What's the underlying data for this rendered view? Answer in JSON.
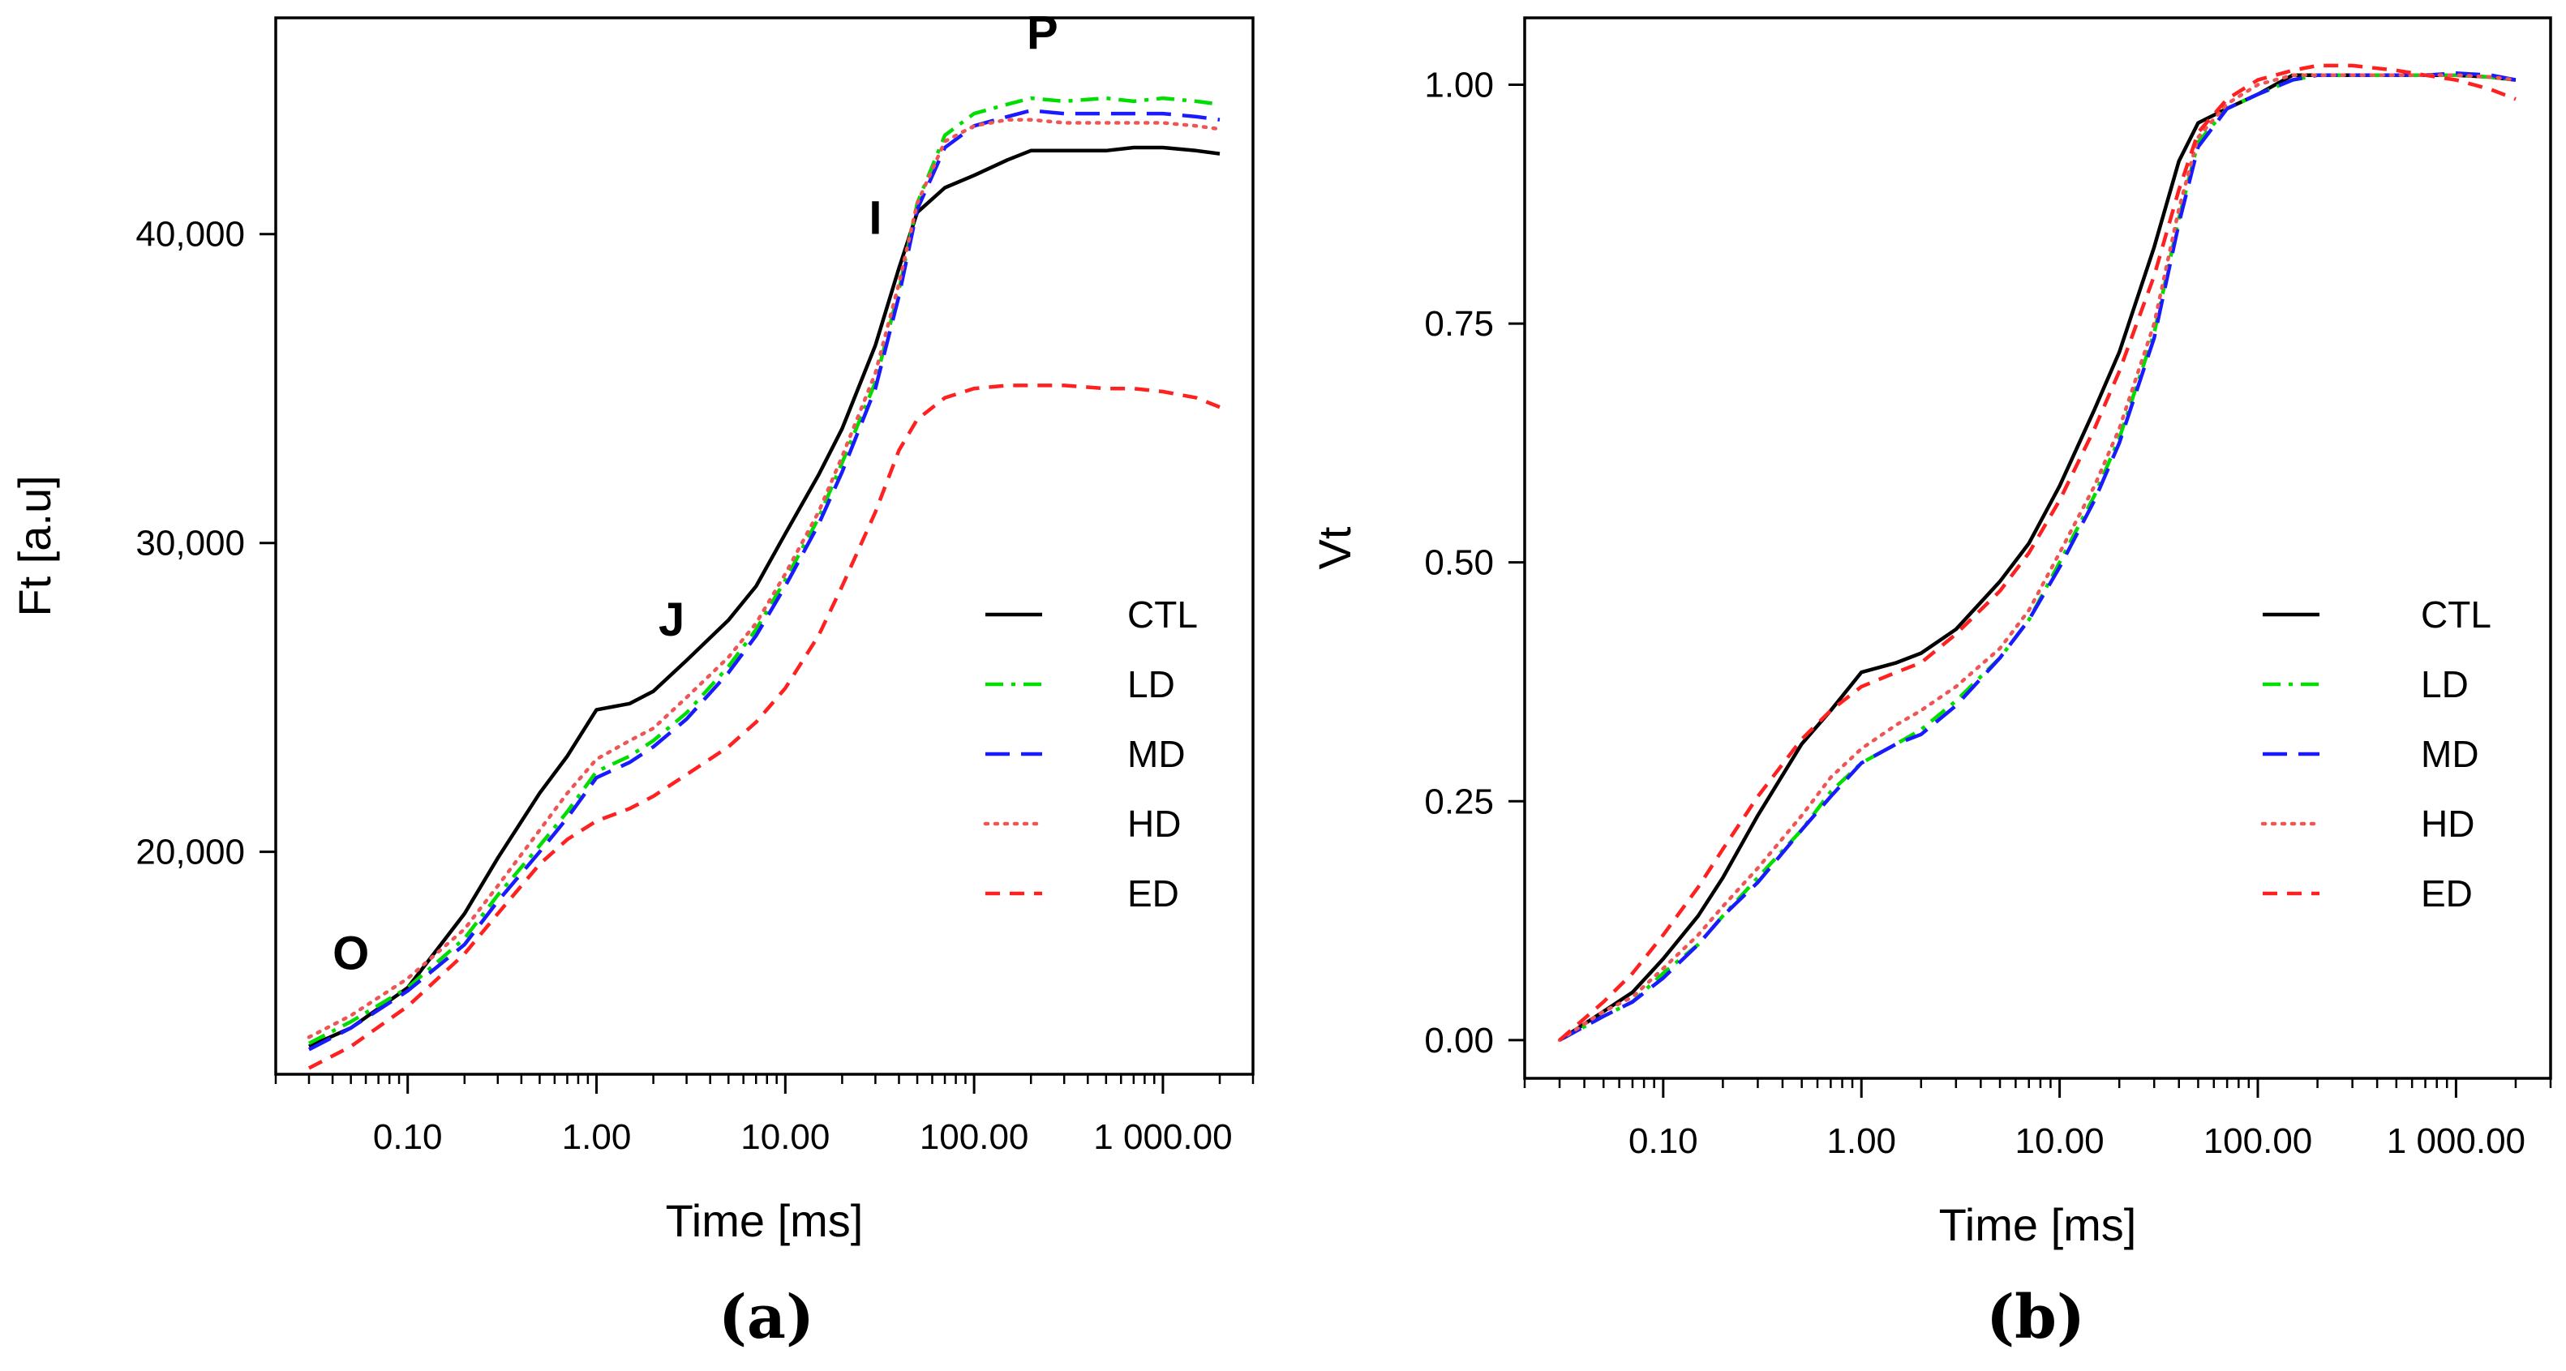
{
  "chart_data": [
    {
      "type": "line",
      "panel_label": "(a)",
      "xlabel": "Time [ms]",
      "ylabel": "Ft [a.u]",
      "xscale": "log",
      "xlim": [
        0.02,
        3000
      ],
      "ylim": [
        12800,
        47000
      ],
      "grid": false,
      "legend_position": "center-right",
      "xticks": [
        0.1,
        1,
        10,
        100,
        1000
      ],
      "xtick_labels": [
        "0.10",
        "1.00",
        "10.00",
        "100.00",
        "1 000.00"
      ],
      "yticks": [
        20000,
        30000,
        40000
      ],
      "ytick_labels": [
        "20,000",
        "30,000",
        "40,000"
      ],
      "annotations": [
        {
          "text": "O",
          "x": 0.05,
          "y": 16200
        },
        {
          "text": "J",
          "x": 2.5,
          "y": 27000
        },
        {
          "text": "I",
          "x": 30,
          "y": 40000
        },
        {
          "text": "P",
          "x": 230,
          "y": 46000
        }
      ],
      "series": [
        {
          "name": "CTL",
          "color": "#000000",
          "style": "solid",
          "x": [
            0.03,
            0.05,
            0.1,
            0.2,
            0.3,
            0.5,
            0.7,
            1,
            1.5,
            2,
            3,
            5,
            7,
            10,
            15,
            20,
            30,
            40,
            50,
            70,
            100,
            150,
            200,
            300,
            500,
            700,
            1000,
            1500,
            2000
          ],
          "y": [
            13700,
            14300,
            15600,
            18000,
            19800,
            21900,
            23100,
            24600,
            24800,
            25200,
            26200,
            27500,
            28600,
            30300,
            32200,
            33700,
            36400,
            38900,
            40700,
            41500,
            41900,
            42400,
            42700,
            42700,
            42700,
            42800,
            42800,
            42700,
            42600
          ]
        },
        {
          "name": "LD",
          "color": "#00dd00",
          "style": "dashdot",
          "x": [
            0.03,
            0.05,
            0.1,
            0.2,
            0.3,
            0.5,
            0.7,
            1,
            1.5,
            2,
            3,
            5,
            7,
            10,
            15,
            20,
            30,
            40,
            50,
            70,
            100,
            150,
            200,
            300,
            500,
            700,
            1000,
            1500,
            2000
          ],
          "y": [
            13800,
            14500,
            15600,
            17200,
            18600,
            20200,
            21300,
            22600,
            23100,
            23600,
            24500,
            26000,
            27200,
            28800,
            30800,
            32600,
            35200,
            38200,
            41000,
            43200,
            43900,
            44200,
            44400,
            44300,
            44400,
            44300,
            44400,
            44300,
            44200
          ]
        },
        {
          "name": "MD",
          "color": "#1a1aff",
          "style": "longdash",
          "x": [
            0.03,
            0.05,
            0.1,
            0.2,
            0.3,
            0.5,
            0.7,
            1,
            1.5,
            2,
            3,
            5,
            7,
            10,
            15,
            20,
            30,
            40,
            50,
            70,
            100,
            150,
            200,
            300,
            500,
            700,
            1000,
            1500,
            2000
          ],
          "y": [
            13600,
            14300,
            15500,
            17000,
            18400,
            20000,
            21100,
            22400,
            22900,
            23400,
            24300,
            25800,
            27000,
            28600,
            30600,
            32300,
            35000,
            38000,
            40800,
            42800,
            43500,
            43800,
            44000,
            43900,
            43900,
            43900,
            43900,
            43800,
            43700
          ]
        },
        {
          "name": "HD",
          "color": "#ee5555",
          "style": "dotted",
          "x": [
            0.03,
            0.05,
            0.1,
            0.2,
            0.3,
            0.5,
            0.7,
            1,
            1.5,
            2,
            3,
            5,
            7,
            10,
            15,
            20,
            30,
            40,
            50,
            70,
            100,
            150,
            200,
            300,
            500,
            700,
            1000,
            1500,
            2000
          ],
          "y": [
            14000,
            14700,
            15900,
            17500,
            18900,
            20700,
            21900,
            23000,
            23600,
            24000,
            25000,
            26300,
            27400,
            29000,
            31000,
            32800,
            35500,
            38400,
            41000,
            43000,
            43500,
            43700,
            43700,
            43600,
            43600,
            43600,
            43600,
            43500,
            43400
          ]
        },
        {
          "name": "ED",
          "color": "#ff2020",
          "style": "dashed",
          "x": [
            0.03,
            0.05,
            0.1,
            0.2,
            0.3,
            0.5,
            0.7,
            1,
            1.5,
            2,
            3,
            5,
            7,
            10,
            15,
            20,
            30,
            40,
            50,
            70,
            100,
            150,
            200,
            300,
            500,
            700,
            1000,
            1500,
            2000
          ],
          "y": [
            13000,
            13700,
            15000,
            16700,
            18000,
            19600,
            20400,
            21000,
            21400,
            21800,
            22500,
            23400,
            24200,
            25300,
            27000,
            28600,
            31000,
            33000,
            34000,
            34700,
            35000,
            35100,
            35100,
            35100,
            35000,
            35000,
            34900,
            34700,
            34400
          ]
        }
      ],
      "legend": [
        "CTL",
        "LD",
        "MD",
        "HD",
        "ED"
      ]
    },
    {
      "type": "line",
      "panel_label": "(b)",
      "xlabel": "Time [ms]",
      "ylabel": "Vt",
      "xscale": "log",
      "xlim": [
        0.02,
        3000
      ],
      "ylim": [
        -0.04,
        1.07
      ],
      "grid": false,
      "legend_position": "center-right",
      "xticks": [
        0.1,
        1,
        10,
        100,
        1000
      ],
      "xtick_labels": [
        "0.10",
        "1.00",
        "10.00",
        "100.00",
        "1 000.00"
      ],
      "yticks": [
        0,
        0.25,
        0.5,
        0.75,
        1
      ],
      "ytick_labels": [
        "0.00",
        "0.25",
        "0.50",
        "0.75",
        "1.00"
      ],
      "series": [
        {
          "name": "CTL",
          "color": "#000000",
          "style": "solid",
          "x": [
            0.03,
            0.05,
            0.07,
            0.1,
            0.15,
            0.2,
            0.3,
            0.5,
            0.7,
            1,
            1.5,
            2,
            3,
            5,
            7,
            10,
            15,
            20,
            30,
            40,
            50,
            70,
            100,
            150,
            200,
            300,
            500,
            700,
            1000,
            1500,
            2000
          ],
          "y": [
            0.0,
            0.03,
            0.05,
            0.085,
            0.13,
            0.17,
            0.235,
            0.31,
            0.345,
            0.385,
            0.395,
            0.405,
            0.43,
            0.48,
            0.52,
            0.58,
            0.66,
            0.72,
            0.83,
            0.92,
            0.96,
            0.975,
            0.99,
            1.01,
            1.01,
            1.01,
            1.01,
            1.01,
            1.01,
            1.008,
            1.005
          ]
        },
        {
          "name": "LD",
          "color": "#00dd00",
          "style": "dashdot",
          "x": [
            0.03,
            0.05,
            0.07,
            0.1,
            0.15,
            0.2,
            0.3,
            0.5,
            0.7,
            1,
            1.5,
            2,
            3,
            5,
            7,
            10,
            15,
            20,
            30,
            40,
            50,
            70,
            100,
            150,
            200,
            300,
            500,
            700,
            1000,
            1500,
            2000
          ],
          "y": [
            0.0,
            0.025,
            0.04,
            0.07,
            0.1,
            0.13,
            0.17,
            0.22,
            0.26,
            0.29,
            0.31,
            0.325,
            0.355,
            0.4,
            0.44,
            0.5,
            0.57,
            0.63,
            0.74,
            0.86,
            0.94,
            0.975,
            0.99,
            1.005,
            1.01,
            1.01,
            1.01,
            1.01,
            1.01,
            1.008,
            1.005
          ]
        },
        {
          "name": "MD",
          "color": "#1a1aff",
          "style": "longdash",
          "x": [
            0.03,
            0.05,
            0.07,
            0.1,
            0.15,
            0.2,
            0.3,
            0.5,
            0.7,
            1,
            1.5,
            2,
            3,
            5,
            7,
            10,
            15,
            20,
            30,
            40,
            50,
            70,
            100,
            150,
            200,
            300,
            500,
            700,
            1000,
            1500,
            2000
          ],
          "y": [
            0.0,
            0.025,
            0.04,
            0.065,
            0.1,
            0.13,
            0.165,
            0.22,
            0.255,
            0.29,
            0.31,
            0.32,
            0.35,
            0.4,
            0.44,
            0.495,
            0.565,
            0.625,
            0.735,
            0.855,
            0.935,
            0.975,
            0.99,
            1.005,
            1.01,
            1.01,
            1.01,
            1.01,
            1.012,
            1.01,
            1.005
          ]
        },
        {
          "name": "HD",
          "color": "#ee5555",
          "style": "dotted",
          "x": [
            0.03,
            0.05,
            0.07,
            0.1,
            0.15,
            0.2,
            0.3,
            0.5,
            0.7,
            1,
            1.5,
            2,
            3,
            5,
            7,
            10,
            15,
            20,
            30,
            40,
            50,
            70,
            100,
            150,
            200,
            300,
            500,
            700,
            1000,
            1500,
            2000
          ],
          "y": [
            0.0,
            0.03,
            0.045,
            0.075,
            0.11,
            0.14,
            0.18,
            0.235,
            0.275,
            0.305,
            0.33,
            0.345,
            0.37,
            0.41,
            0.45,
            0.51,
            0.58,
            0.64,
            0.75,
            0.87,
            0.945,
            0.98,
            1.0,
            1.01,
            1.01,
            1.01,
            1.01,
            1.01,
            1.01,
            1.008,
            1.005
          ]
        },
        {
          "name": "ED",
          "color": "#ff2020",
          "style": "dashed",
          "x": [
            0.03,
            0.05,
            0.07,
            0.1,
            0.15,
            0.2,
            0.3,
            0.5,
            0.7,
            1,
            1.5,
            2,
            3,
            5,
            7,
            10,
            15,
            20,
            30,
            40,
            50,
            70,
            100,
            150,
            200,
            300,
            500,
            700,
            1000,
            1500,
            2000
          ],
          "y": [
            0.0,
            0.04,
            0.07,
            0.11,
            0.16,
            0.2,
            0.255,
            0.315,
            0.345,
            0.37,
            0.385,
            0.395,
            0.425,
            0.47,
            0.51,
            0.565,
            0.64,
            0.7,
            0.8,
            0.89,
            0.95,
            0.985,
            1.005,
            1.015,
            1.02,
            1.02,
            1.015,
            1.01,
            1.005,
            0.995,
            0.985
          ]
        }
      ],
      "legend": [
        "CTL",
        "LD",
        "MD",
        "HD",
        "ED"
      ]
    }
  ]
}
